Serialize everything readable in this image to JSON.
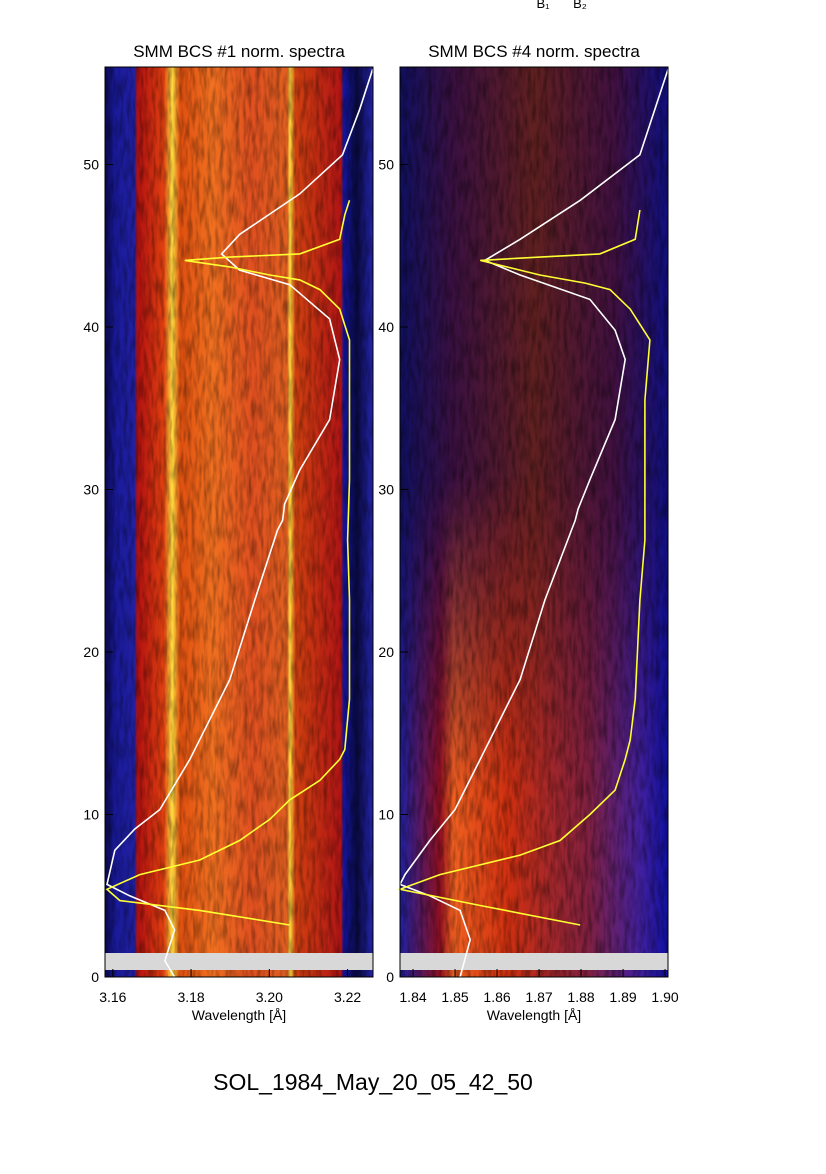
{
  "top_labels": [
    "B₁",
    "B₂"
  ],
  "figure_label": "SOL_1984_May_20_05_42_50",
  "chart_data": [
    {
      "type": "line",
      "title": "SMM BCS #1 norm. spectra",
      "x_label": "Wavelength [Å]",
      "xlim": [
        3.158,
        3.2265
      ],
      "ylim": [
        0,
        56
      ],
      "xticks": [
        3.16,
        3.18,
        {
          "value": 3.2,
          "label": "3.20"
        },
        3.22
      ],
      "yticks": [
        0,
        10,
        20,
        30,
        40,
        50
      ],
      "series": [
        {
          "color": "#ffffff",
          "x": [
            3.2264,
            3.2231,
            3.2187,
            3.2078,
            3.1924,
            3.1878,
            3.1924,
            3.2052,
            3.2154,
            3.218,
            3.2154,
            3.2078,
            3.2039,
            3.2034,
            3.2021,
            3.1963,
            3.1899,
            3.1797,
            3.172,
            3.1656,
            3.1605,
            3.1585,
            3.1643,
            3.1733,
            3.1758,
            3.1733,
            3.1758
          ],
          "values": [
            55.85,
            53.4,
            50.6,
            48.2,
            45.7,
            44.5,
            43.5,
            42.6,
            40.5,
            38.0,
            34.3,
            31.2,
            29.1,
            28.1,
            27.5,
            23.2,
            18.3,
            13.4,
            10.3,
            9.1,
            7.8,
            5.7,
            5.0,
            4.1,
            2.9,
            1.0,
            0
          ]
        },
        {
          "color": "#ffff33",
          "x": [
            3.2052,
            3.1822,
            3.1618,
            3.1585,
            3.1669,
            3.1822,
            3.1924,
            3.2001,
            3.2052,
            3.2129,
            3.218,
            3.2193,
            3.2205,
            3.2205,
            3.22,
            3.2205,
            3.2205,
            3.2205,
            3.218,
            3.2129,
            3.2078,
            3.2001,
            3.1899,
            3.1784,
            3.1899,
            3.2078,
            3.218,
            3.2193,
            3.2205
          ],
          "values": [
            3.2,
            4.1,
            4.7,
            5.4,
            6.3,
            7.2,
            8.4,
            9.7,
            10.9,
            12.1,
            13.4,
            14.0,
            17.1,
            23.2,
            26.9,
            30.6,
            35.5,
            39.2,
            41.1,
            42.3,
            42.9,
            43.2,
            43.7,
            44.1,
            44.3,
            44.5,
            45.4,
            46.9,
            47.8
          ]
        }
      ]
    },
    {
      "type": "line",
      "title": "SMM BCS #4 norm. spectra",
      "x_label": "Wavelength [Å]",
      "xlim": [
        1.8369,
        1.9007
      ],
      "ylim": [
        0,
        56
      ],
      "xticks": [
        1.84,
        1.85,
        1.86,
        1.87,
        1.88,
        1.89,
        {
          "value": 1.9,
          "label": "1.90"
        }
      ],
      "yticks": [
        0,
        10,
        20,
        30,
        40,
        50
      ],
      "series": [
        {
          "color": "#ffffff",
          "x": [
            1.9007,
            1.894,
            1.8798,
            1.8655,
            1.8571,
            1.8655,
            1.8821,
            1.8881,
            1.8905,
            1.8881,
            1.8821,
            1.8793,
            1.8786,
            1.8714,
            1.8655,
            1.856,
            1.85,
            1.844,
            1.8381,
            1.8369,
            1.844,
            1.8512,
            1.8536,
            1.8512
          ],
          "values": [
            55.85,
            50.6,
            47.8,
            45.4,
            44.1,
            43.2,
            41.7,
            39.8,
            38.0,
            34.3,
            30.6,
            28.8,
            28.1,
            23.2,
            18.3,
            13.4,
            10.3,
            8.4,
            6.3,
            5.7,
            5.0,
            4.1,
            2.3,
            0
          ]
        },
        {
          "color": "#ffff33",
          "x": [
            1.8798,
            1.856,
            1.8369,
            1.8464,
            1.8655,
            1.875,
            1.8821,
            1.8881,
            1.8905,
            1.8917,
            1.8929,
            1.894,
            1.8952,
            1.8952,
            1.8952,
            1.8964,
            1.8917,
            1.8869,
            1.881,
            1.8702,
            1.856,
            1.8702,
            1.8845,
            1.8929,
            1.894
          ],
          "values": [
            3.2,
            4.4,
            5.4,
            6.3,
            7.5,
            8.4,
            10.0,
            11.5,
            13.4,
            14.6,
            17.1,
            23.2,
            26.9,
            30.6,
            35.5,
            39.2,
            41.1,
            42.3,
            42.7,
            43.2,
            44.1,
            44.3,
            44.5,
            45.4,
            47.2
          ]
        }
      ]
    }
  ]
}
